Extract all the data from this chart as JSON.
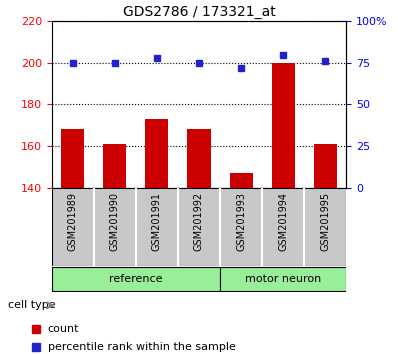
{
  "title": "GDS2786 / 173321_at",
  "samples": [
    "GSM201989",
    "GSM201990",
    "GSM201991",
    "GSM201992",
    "GSM201993",
    "GSM201994",
    "GSM201995"
  ],
  "counts": [
    168,
    161,
    173,
    168,
    147,
    200,
    161
  ],
  "percentiles": [
    75,
    75,
    78,
    75,
    72,
    80,
    76
  ],
  "ylim_left": [
    140,
    220
  ],
  "ylim_right": [
    0,
    100
  ],
  "yticks_left": [
    140,
    160,
    180,
    200,
    220
  ],
  "yticks_right": [
    0,
    25,
    50,
    75,
    100
  ],
  "yticklabels_right": [
    "0",
    "25",
    "50",
    "75",
    "100%"
  ],
  "bar_color": "#cc0000",
  "dot_color": "#2222cc",
  "group_labels": [
    "reference",
    "motor neuron"
  ],
  "group_ranges": [
    [
      0,
      4
    ],
    [
      4,
      7
    ]
  ],
  "cell_type_label": "cell type",
  "legend_count": "count",
  "legend_percentile": "percentile rank within the sample",
  "bar_width": 0.55,
  "figure_bg": "#ffffff",
  "label_bg": "#c8c8c8",
  "group_color": "#99ee99"
}
